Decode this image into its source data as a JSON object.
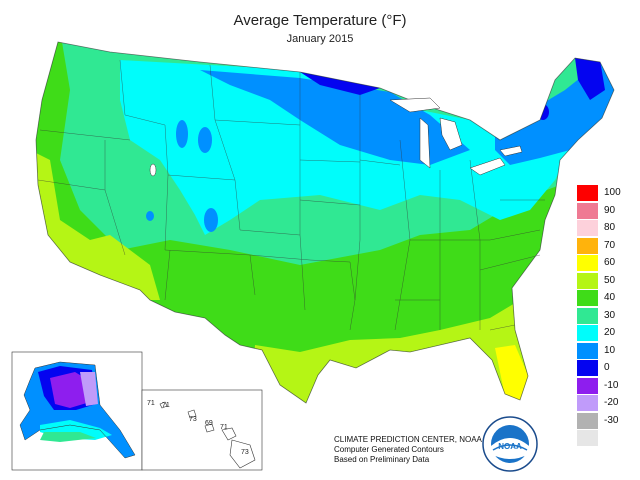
{
  "header": {
    "title": "Average Temperature (°F)",
    "subtitle": "January 2015"
  },
  "legend": [
    {
      "label": "100",
      "color": "#fe0000"
    },
    {
      "label": "90",
      "color": "#ef7a93"
    },
    {
      "label": "80",
      "color": "#fdd1db"
    },
    {
      "label": "70",
      "color": "#ffb30c"
    },
    {
      "label": "60",
      "color": "#ffff00"
    },
    {
      "label": "50",
      "color": "#b5f515"
    },
    {
      "label": "40",
      "color": "#3fdc18"
    },
    {
      "label": "30",
      "color": "#30e893"
    },
    {
      "label": "20",
      "color": "#00fdfb"
    },
    {
      "label": "10",
      "color": "#0090ff"
    },
    {
      "label": "0",
      "color": "#0404f0"
    },
    {
      "label": "-10",
      "color": "#8e1eee"
    },
    {
      "label": "-20",
      "color": "#c09bfa"
    },
    {
      "label": "-30",
      "color": "#b2b2b2"
    },
    {
      "label": "",
      "color": "#e6e6e6"
    }
  ],
  "credit": {
    "line1": "CLIMATE PREDICTION CENTER, NOAA",
    "line2": "Computer Generated Contours",
    "line3": "Based on Preliminary Data"
  },
  "hawaii": {
    "labels": [
      "71",
      "71",
      "73",
      "69",
      "71",
      "73"
    ]
  },
  "logo": {
    "icon": "noaa-logo",
    "text": "NOAA"
  }
}
